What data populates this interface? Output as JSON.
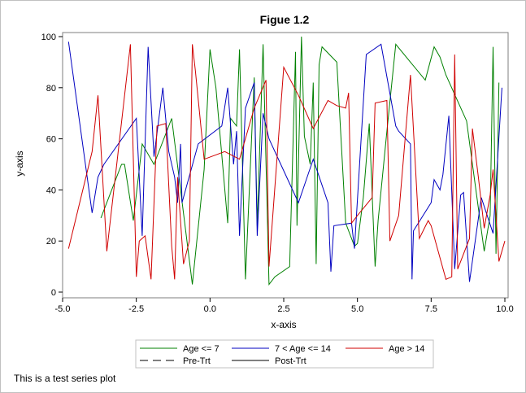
{
  "chart_data": {
    "type": "line",
    "title": "Figue 1.2",
    "xlabel": "x-axis",
    "ylabel": "y-axis",
    "xlim": [
      -5.0,
      10.0
    ],
    "ylim": [
      0,
      100
    ],
    "xticks": [
      "-5.0",
      "-2.5",
      "0.0",
      "2.5",
      "5.0",
      "7.5",
      "10.0"
    ],
    "yticks": [
      "0",
      "20",
      "40",
      "60",
      "80",
      "100"
    ],
    "grid": false,
    "legend_position": "bottom",
    "legend": [
      {
        "label": "Age <= 7",
        "color": "#008000",
        "style": "solid"
      },
      {
        "label": "7 < Age <= 14",
        "color": "#0000c0",
        "style": "solid"
      },
      {
        "label": "Age > 14",
        "color": "#d00000",
        "style": "solid"
      },
      {
        "label": "Pre-Trt",
        "color": "#000000",
        "style": "dashed"
      },
      {
        "label": "Post-Trt",
        "color": "#000000",
        "style": "solid"
      }
    ],
    "series": [
      {
        "name": "Age <= 7",
        "color": "#008000",
        "x": [
          -3.7,
          -3.0,
          -2.9,
          -2.6,
          -2.3,
          -1.9,
          -1.3,
          -0.6,
          -0.2,
          0.0,
          0.2,
          0.6,
          0.7,
          0.9,
          1.0,
          1.2,
          1.5,
          1.6,
          1.8,
          2.0,
          2.2,
          2.7,
          2.9,
          2.95,
          3.1,
          3.2,
          3.4,
          3.5,
          3.6,
          3.7,
          3.8,
          4.3,
          4.6,
          4.9,
          5.0,
          5.2,
          5.4,
          5.6,
          5.7,
          6.0,
          6.3,
          6.8,
          7.3,
          7.6,
          7.8,
          8.0,
          8.7,
          9.3,
          9.5,
          9.6,
          9.7,
          9.8
        ],
        "y": [
          29,
          50,
          50,
          28,
          58,
          50,
          68,
          3,
          48,
          95,
          80,
          27,
          68,
          65,
          95,
          5,
          84,
          26,
          97,
          3,
          6,
          10,
          94,
          26,
          100,
          61,
          50,
          82,
          11,
          89,
          96,
          90,
          27,
          18,
          19,
          37,
          66,
          10,
          28,
          63,
          97,
          90,
          83,
          96,
          92,
          85,
          67,
          16,
          30,
          96,
          15,
          82
        ]
      },
      {
        "name": "7 < Age <= 14",
        "color": "#0000c0",
        "x": [
          -4.8,
          -4.0,
          -3.8,
          -3.6,
          -2.5,
          -2.3,
          -2.1,
          -1.9,
          -1.6,
          -1.4,
          -1.2,
          -1.1,
          -1.0,
          -0.95,
          -0.4,
          0.4,
          0.6,
          0.8,
          0.9,
          1.0,
          1.2,
          1.5,
          1.6,
          1.8,
          2.0,
          3.0,
          3.5,
          4.0,
          4.1,
          4.2,
          4.8,
          4.9,
          5.3,
          5.8,
          6.3,
          6.4,
          6.8,
          6.85,
          6.9,
          7.5,
          7.6,
          7.8,
          7.9,
          8.1,
          8.3,
          8.5,
          8.6,
          8.8,
          9.2,
          9.6,
          9.9
        ],
        "y": [
          98,
          31,
          45,
          50,
          68,
          22,
          96,
          53,
          80,
          55,
          45,
          35,
          58,
          35,
          58,
          65,
          80,
          50,
          63,
          22,
          72,
          82,
          22,
          70,
          60,
          35,
          52,
          35,
          8,
          26,
          27,
          17,
          93,
          97,
          65,
          63,
          58,
          5,
          24,
          35,
          44,
          40,
          46,
          69,
          9,
          38,
          39,
          4,
          37,
          23,
          80
        ]
      },
      {
        "name": "Age > 14",
        "color": "#d00000",
        "x": [
          -4.8,
          -4.0,
          -3.8,
          -3.5,
          -2.7,
          -2.5,
          -2.4,
          -2.2,
          -2.0,
          -1.8,
          -1.5,
          -1.3,
          -1.2,
          -1.1,
          -0.9,
          -0.7,
          -0.6,
          -0.5,
          -0.2,
          0.5,
          1.0,
          1.5,
          1.9,
          2.0,
          2.5,
          3.0,
          3.5,
          4.0,
          4.3,
          4.6,
          4.7,
          4.8,
          5.0,
          5.5,
          5.6,
          6.0,
          6.1,
          6.4,
          6.8,
          7.1,
          7.4,
          7.5,
          8.0,
          8.2,
          8.3,
          8.4,
          8.8,
          8.9,
          9.1,
          9.3,
          9.5,
          9.6,
          9.8,
          10.0
        ],
        "y": [
          17,
          55,
          77,
          16,
          97,
          6,
          20,
          22,
          5,
          65,
          66,
          18,
          5,
          45,
          11,
          20,
          97,
          87,
          52,
          55,
          52,
          72,
          83,
          10,
          88,
          77,
          64,
          75,
          73,
          72,
          78,
          27,
          30,
          37,
          74,
          75,
          20,
          30,
          85,
          21,
          28,
          26,
          5,
          6,
          93,
          9,
          21,
          64,
          45,
          25,
          38,
          48,
          12,
          20
        ]
      }
    ]
  },
  "footnote": "This is a test series plot"
}
